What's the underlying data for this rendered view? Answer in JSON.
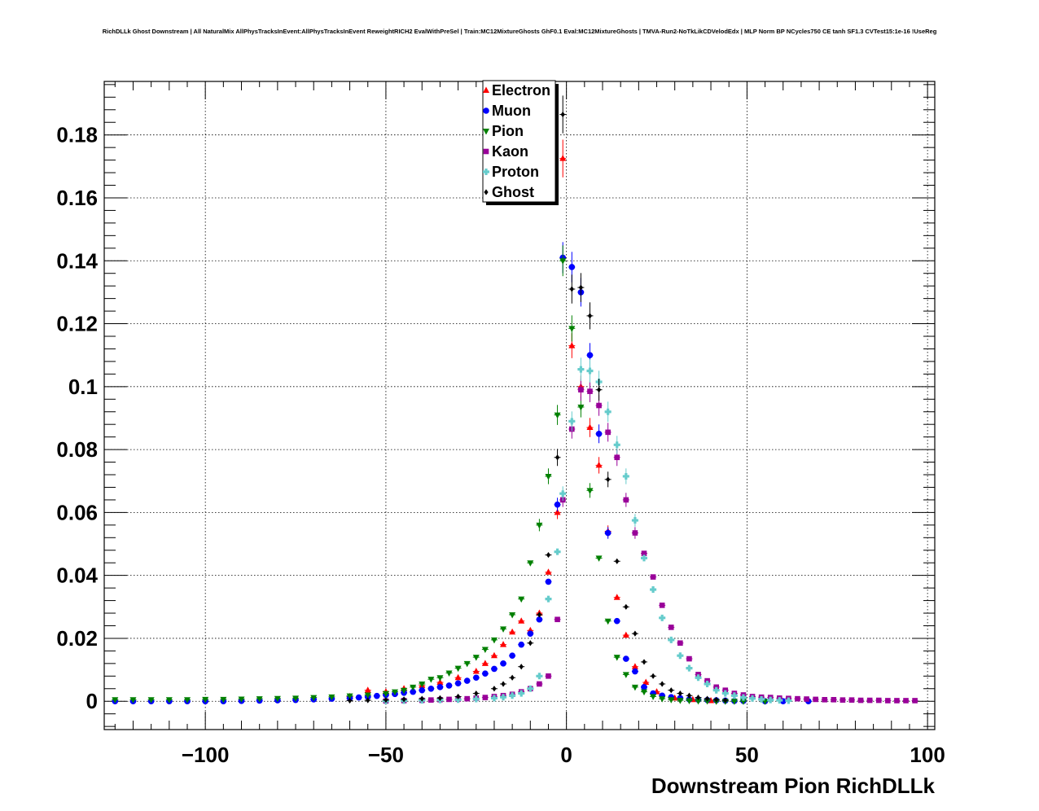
{
  "chart_data": {
    "type": "scatter",
    "title": "RichDLLk Ghost Downstream | All NaturalMix AllPhysTracksInEvent:AllPhysTracksInEvent ReweightRICH2 EvalWithPreSel | Train:MC12MixtureGhosts GhF0.1 Eval:MC12MixtureGhosts | TMVA-Run2-NoTkLikCDVelodEdx | MLP Norm BP NCycles750 CE tanh SF1.3 CVTest15:1e-16 !UseReg",
    "xlabel": "Downstream Pion RichDLLk",
    "ylabel": "",
    "xlim": [
      -128,
      102
    ],
    "ylim": [
      -0.009,
      0.197
    ],
    "grid": true,
    "legend_position": "top-center",
    "x_ticks": [
      -100,
      -50,
      0,
      50,
      100
    ],
    "x_tick_labels": [
      "−100",
      "−50",
      "0",
      "50",
      "100"
    ],
    "y_ticks": [
      0,
      0.02,
      0.04,
      0.06,
      0.08,
      0.1,
      0.12,
      0.14,
      0.16,
      0.18
    ],
    "y_tick_labels": [
      "0",
      "0.02",
      "0.04",
      "0.06",
      "0.08",
      "0.1",
      "0.12",
      "0.14",
      "0.16",
      "0.18"
    ],
    "series": [
      {
        "name": "Electron",
        "color": "#ff0000",
        "marker": "triangle-up",
        "x": [
          -60,
          -55,
          -50,
          -45,
          -40,
          -35,
          -30,
          -25,
          -22.5,
          -20,
          -17.5,
          -15,
          -12.5,
          -10,
          -7.5,
          -5,
          -2.5,
          -1,
          1.5,
          4,
          6.5,
          9,
          11.5,
          14,
          16.5,
          19,
          22,
          25,
          30,
          35,
          40
        ],
        "y": [
          0.0015,
          0.0035,
          0.003,
          0.004,
          0.005,
          0.006,
          0.0075,
          0.0095,
          0.012,
          0.0145,
          0.018,
          0.022,
          0.0255,
          0.0225,
          0.028,
          0.041,
          0.06,
          0.1725,
          0.113,
          0.1,
          0.087,
          0.075,
          0.054,
          0.033,
          0.021,
          0.011,
          0.006,
          0.003,
          0.001,
          0.0005,
          0.0002
        ]
      },
      {
        "name": "Muon",
        "color": "#0000ff",
        "marker": "circle",
        "x": [
          -125,
          -120,
          -115,
          -110,
          -105,
          -100,
          -95,
          -90,
          -85,
          -80,
          -75,
          -70,
          -65,
          -60,
          -57.5,
          -55,
          -52.5,
          -50,
          -47.5,
          -45,
          -42.5,
          -40,
          -37.5,
          -35,
          -32.5,
          -30,
          -27.5,
          -25,
          -22.5,
          -20,
          -17.5,
          -15,
          -12.5,
          -10,
          -7.5,
          -5,
          -2.5,
          -1,
          1.5,
          4,
          6.5,
          9,
          11.5,
          14,
          16.5,
          19,
          21.5,
          24,
          26.5,
          29,
          31.5,
          34,
          36.5,
          39,
          41.5,
          44,
          46.5,
          49,
          55,
          60,
          67
        ],
        "y": [
          0,
          0,
          0,
          0,
          0,
          0,
          0,
          0.0001,
          0.0002,
          0.0003,
          0.0004,
          0.0006,
          0.0008,
          0.001,
          0.0012,
          0.0014,
          0.0017,
          0.002,
          0.0023,
          0.0027,
          0.003,
          0.0035,
          0.004,
          0.0045,
          0.005,
          0.0057,
          0.0065,
          0.0075,
          0.0088,
          0.0103,
          0.012,
          0.0145,
          0.018,
          0.0215,
          0.026,
          0.038,
          0.0625,
          0.141,
          0.138,
          0.13,
          0.11,
          0.085,
          0.0535,
          0.0255,
          0.0135,
          0.0095,
          0.0045,
          0.0025,
          0.0018,
          0.0013,
          0.001,
          0.0006,
          0.0005,
          0.0004,
          0.0003,
          0.0002,
          0.0001,
          0.0001,
          0,
          0,
          0
        ]
      },
      {
        "name": "Pion",
        "color": "#008000",
        "marker": "triangle-down",
        "x": [
          -125,
          -120,
          -115,
          -110,
          -105,
          -100,
          -95,
          -90,
          -85,
          -80,
          -75,
          -70,
          -65,
          -60,
          -55,
          -50,
          -47.5,
          -45,
          -42.5,
          -40,
          -37.5,
          -35,
          -32.5,
          -30,
          -27.5,
          -25,
          -22.5,
          -20,
          -17.5,
          -15,
          -12.5,
          -10,
          -7.5,
          -5,
          -2.5,
          -1,
          1.5,
          4,
          6.5,
          9,
          11.5,
          14,
          16.5,
          19,
          21.5,
          24,
          26.5,
          29,
          31.5,
          34,
          36.5,
          39,
          41.5,
          44,
          46.5,
          49,
          55
        ],
        "y": [
          0.0005,
          0.0005,
          0.0005,
          0.0005,
          0.0005,
          0.0006,
          0.0006,
          0.0007,
          0.0008,
          0.0009,
          0.001,
          0.0012,
          0.0014,
          0.0017,
          0.002,
          0.0025,
          0.003,
          0.0035,
          0.0045,
          0.0055,
          0.007,
          0.0075,
          0.009,
          0.0105,
          0.012,
          0.014,
          0.0165,
          0.0195,
          0.023,
          0.0275,
          0.0325,
          0.044,
          0.056,
          0.0715,
          0.091,
          0.14,
          0.1185,
          0.0935,
          0.067,
          0.0455,
          0.0255,
          0.014,
          0.0085,
          0.0045,
          0.003,
          0.0015,
          0.0008,
          0.0005,
          0.0003,
          0.0002,
          0.0001,
          0.0001,
          0,
          0,
          0,
          0,
          0
        ]
      },
      {
        "name": "Kaon",
        "color": "#990099",
        "marker": "square",
        "x": [
          -50,
          -45,
          -40,
          -37.5,
          -35,
          -32.5,
          -30,
          -27.5,
          -25,
          -22.5,
          -20,
          -17.5,
          -15,
          -12.5,
          -10,
          -7.5,
          -5,
          -2.5,
          -1,
          1.5,
          4,
          6.5,
          9,
          11.5,
          14,
          16.5,
          19,
          21.5,
          24,
          26.5,
          29,
          31.5,
          34,
          36.5,
          39,
          41.5,
          44,
          46.5,
          49,
          51.5,
          54,
          56.5,
          59,
          61.5,
          64,
          66.5,
          69,
          71.5,
          74,
          76.5,
          79,
          81.5,
          84,
          86.5,
          89,
          91.5,
          94,
          96.5
        ],
        "y": [
          0.0001,
          0.0002,
          0.0003,
          0.0004,
          0.0005,
          0.0006,
          0.0007,
          0.0008,
          0.001,
          0.0012,
          0.0015,
          0.0018,
          0.0022,
          0.003,
          0.004,
          0.0055,
          0.008,
          0.026,
          0.064,
          0.0865,
          0.099,
          0.0985,
          0.094,
          0.0855,
          0.0775,
          0.064,
          0.0535,
          0.047,
          0.0395,
          0.0305,
          0.0235,
          0.0185,
          0.0135,
          0.0085,
          0.0065,
          0.0045,
          0.0035,
          0.0025,
          0.002,
          0.0015,
          0.0013,
          0.0012,
          0.001,
          0.0009,
          0.0008,
          0.0007,
          0.0006,
          0.0005,
          0.0005,
          0.0004,
          0.0004,
          0.0003,
          0.0003,
          0.0003,
          0.0002,
          0.0002,
          0.0002,
          0.0002
        ]
      },
      {
        "name": "Proton",
        "color": "#66cccc",
        "marker": "cross",
        "x": [
          -50,
          -45,
          -40,
          -35,
          -30,
          -25,
          -20,
          -17.5,
          -15,
          -12.5,
          -10,
          -7.5,
          -5,
          -2.5,
          -1,
          1.5,
          4,
          6.5,
          9,
          11.5,
          14,
          16.5,
          19,
          21.5,
          24,
          26.5,
          29,
          31.5,
          34,
          36.5,
          39,
          41.5,
          44,
          46.5,
          49,
          51.5,
          54,
          56.5,
          59,
          61.5
        ],
        "y": [
          0.0001,
          0.0002,
          0.0003,
          0.0004,
          0.0005,
          0.0007,
          0.001,
          0.0013,
          0.0018,
          0.0025,
          0.004,
          0.008,
          0.0325,
          0.0475,
          0.066,
          0.089,
          0.1055,
          0.105,
          0.1015,
          0.092,
          0.0815,
          0.0715,
          0.0575,
          0.0455,
          0.0355,
          0.0265,
          0.0195,
          0.0145,
          0.0105,
          0.0075,
          0.0055,
          0.0035,
          0.0025,
          0.0018,
          0.0012,
          0.0009,
          0.0006,
          0.0004,
          0.0003,
          0.0002
        ]
      },
      {
        "name": "Ghost",
        "color": "#000000",
        "marker": "diamond",
        "x": [
          -60,
          -55,
          -50,
          -45,
          -40,
          -35,
          -30,
          -25,
          -20,
          -17.5,
          -15,
          -12.5,
          -10,
          -7.5,
          -5,
          -2.5,
          -1,
          1.5,
          4,
          6.5,
          9,
          11.5,
          14,
          16.5,
          19,
          21.5,
          24,
          26.5,
          29,
          31.5,
          34,
          36.5,
          39,
          41.5,
          44
        ],
        "y": [
          0.0002,
          0.0003,
          0.0004,
          0.0006,
          0.0008,
          0.001,
          0.0015,
          0.0025,
          0.004,
          0.0055,
          0.0075,
          0.011,
          0.0185,
          0.0275,
          0.0465,
          0.0775,
          0.1865,
          0.131,
          0.1315,
          0.1225,
          0.099,
          0.0705,
          0.0445,
          0.03,
          0.0215,
          0.0125,
          0.008,
          0.0055,
          0.0035,
          0.0025,
          0.0018,
          0.0012,
          0.0008,
          0.0005,
          0.0003
        ]
      }
    ]
  }
}
